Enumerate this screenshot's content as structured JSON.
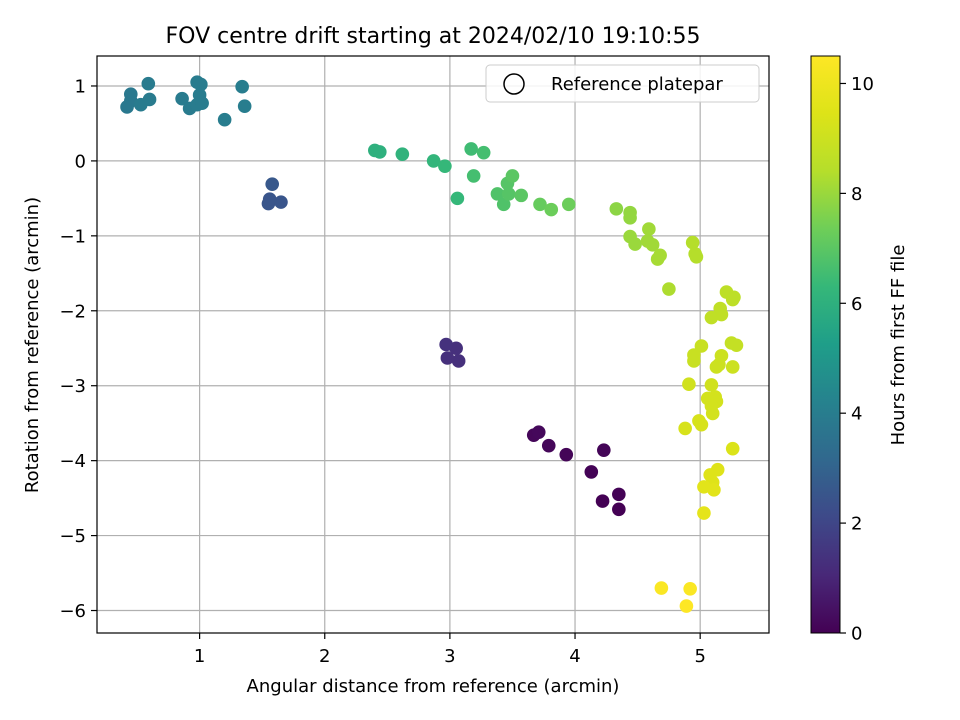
{
  "chart_data": {
    "type": "scatter",
    "title": "FOV centre drift starting at 2024/02/10 19:10:55",
    "xlabel": "Angular distance from reference (arcmin)",
    "ylabel": "Rotation from reference (arcmin)",
    "xlim": [
      0.18,
      5.55
    ],
    "ylim": [
      -6.3,
      1.4
    ],
    "x_ticks": [
      1,
      2,
      3,
      4,
      5
    ],
    "y_ticks": [
      1,
      0,
      -1,
      -2,
      -3,
      -4,
      -5,
      -6
    ],
    "grid": true,
    "legend": {
      "placement": "top-right",
      "entries": [
        "Reference platepar"
      ]
    },
    "colorbar": {
      "label": "Hours from first FF file",
      "range": [
        0,
        10.5
      ],
      "ticks": [
        0,
        2,
        4,
        6,
        8,
        10
      ],
      "colormap": "viridis"
    },
    "point_color_variable": "hours",
    "series": [
      {
        "points": [
          {
            "x": 4.35,
            "y": -4.65,
            "c": 0.0
          },
          {
            "x": 4.22,
            "y": -4.54,
            "c": 0.0
          },
          {
            "x": 4.35,
            "y": -4.45,
            "c": 0.05
          },
          {
            "x": 4.13,
            "y": -4.15,
            "c": 0.05
          },
          {
            "x": 4.23,
            "y": -3.86,
            "c": 0.1
          },
          {
            "x": 3.93,
            "y": -3.92,
            "c": 0.1
          },
          {
            "x": 3.79,
            "y": -3.8,
            "c": 0.15
          },
          {
            "x": 3.67,
            "y": -3.66,
            "c": 0.15
          },
          {
            "x": 3.71,
            "y": -3.62,
            "c": 0.2
          },
          {
            "x": 3.07,
            "y": -2.67,
            "c": 1.3
          },
          {
            "x": 2.98,
            "y": -2.63,
            "c": 1.3
          },
          {
            "x": 3.05,
            "y": -2.5,
            "c": 1.3
          },
          {
            "x": 2.97,
            "y": -2.45,
            "c": 1.35
          },
          {
            "x": 1.55,
            "y": -0.57,
            "c": 2.5
          },
          {
            "x": 1.65,
            "y": -0.55,
            "c": 2.5
          },
          {
            "x": 1.56,
            "y": -0.51,
            "c": 2.5
          },
          {
            "x": 1.58,
            "y": -0.31,
            "c": 2.6
          },
          {
            "x": 0.42,
            "y": 0.72,
            "c": 3.8
          },
          {
            "x": 0.45,
            "y": 0.8,
            "c": 3.8
          },
          {
            "x": 0.45,
            "y": 0.89,
            "c": 3.8
          },
          {
            "x": 0.53,
            "y": 0.75,
            "c": 3.9
          },
          {
            "x": 0.6,
            "y": 0.82,
            "c": 3.9
          },
          {
            "x": 0.59,
            "y": 1.03,
            "c": 3.9
          },
          {
            "x": 0.86,
            "y": 0.83,
            "c": 3.9
          },
          {
            "x": 0.92,
            "y": 0.7,
            "c": 3.9
          },
          {
            "x": 0.98,
            "y": 0.75,
            "c": 3.95
          },
          {
            "x": 1.0,
            "y": 0.88,
            "c": 3.95
          },
          {
            "x": 1.02,
            "y": 0.77,
            "c": 3.95
          },
          {
            "x": 0.98,
            "y": 1.05,
            "c": 3.95
          },
          {
            "x": 1.01,
            "y": 1.02,
            "c": 3.95
          },
          {
            "x": 1.2,
            "y": 0.55,
            "c": 4.0
          },
          {
            "x": 1.34,
            "y": 0.99,
            "c": 4.0
          },
          {
            "x": 1.36,
            "y": 0.73,
            "c": 4.0
          },
          {
            "x": 2.4,
            "y": 0.14,
            "c": 6.0
          },
          {
            "x": 2.44,
            "y": 0.12,
            "c": 6.0
          },
          {
            "x": 2.62,
            "y": 0.09,
            "c": 6.1
          },
          {
            "x": 2.87,
            "y": 0.0,
            "c": 6.2
          },
          {
            "x": 2.96,
            "y": -0.07,
            "c": 6.3
          },
          {
            "x": 3.06,
            "y": -0.5,
            "c": 6.3
          },
          {
            "x": 3.17,
            "y": 0.16,
            "c": 6.5
          },
          {
            "x": 3.27,
            "y": 0.11,
            "c": 6.6
          },
          {
            "x": 3.19,
            "y": -0.2,
            "c": 6.6
          },
          {
            "x": 3.38,
            "y": -0.44,
            "c": 6.8
          },
          {
            "x": 3.43,
            "y": -0.58,
            "c": 6.8
          },
          {
            "x": 3.47,
            "y": -0.44,
            "c": 6.9
          },
          {
            "x": 3.46,
            "y": -0.3,
            "c": 6.9
          },
          {
            "x": 3.5,
            "y": -0.2,
            "c": 7.0
          },
          {
            "x": 3.57,
            "y": -0.46,
            "c": 7.0
          },
          {
            "x": 3.72,
            "y": -0.58,
            "c": 7.2
          },
          {
            "x": 3.81,
            "y": -0.65,
            "c": 7.3
          },
          {
            "x": 3.95,
            "y": -0.58,
            "c": 7.3
          },
          {
            "x": 4.33,
            "y": -0.64,
            "c": 7.8
          },
          {
            "x": 4.44,
            "y": -0.69,
            "c": 7.9
          },
          {
            "x": 4.44,
            "y": -0.76,
            "c": 7.9
          },
          {
            "x": 4.44,
            "y": -1.01,
            "c": 8.0
          },
          {
            "x": 4.48,
            "y": -1.11,
            "c": 8.0
          },
          {
            "x": 4.59,
            "y": -0.91,
            "c": 8.1
          },
          {
            "x": 4.58,
            "y": -1.07,
            "c": 8.1
          },
          {
            "x": 4.62,
            "y": -1.12,
            "c": 8.1
          },
          {
            "x": 4.68,
            "y": -1.26,
            "c": 8.2
          },
          {
            "x": 4.66,
            "y": -1.31,
            "c": 8.2
          },
          {
            "x": 4.75,
            "y": -1.71,
            "c": 8.3
          },
          {
            "x": 4.94,
            "y": -1.09,
            "c": 8.4
          },
          {
            "x": 4.96,
            "y": -1.24,
            "c": 8.4
          },
          {
            "x": 4.97,
            "y": -1.28,
            "c": 8.4
          },
          {
            "x": 5.21,
            "y": -1.75,
            "c": 8.6
          },
          {
            "x": 5.27,
            "y": -1.82,
            "c": 8.6
          },
          {
            "x": 5.26,
            "y": -1.85,
            "c": 8.6
          },
          {
            "x": 5.16,
            "y": -1.97,
            "c": 8.7
          },
          {
            "x": 5.17,
            "y": -2.05,
            "c": 8.7
          },
          {
            "x": 5.09,
            "y": -2.09,
            "c": 8.7
          },
          {
            "x": 5.25,
            "y": -2.43,
            "c": 8.8
          },
          {
            "x": 5.29,
            "y": -2.46,
            "c": 8.8
          },
          {
            "x": 5.01,
            "y": -2.47,
            "c": 8.9
          },
          {
            "x": 4.95,
            "y": -2.59,
            "c": 8.9
          },
          {
            "x": 4.95,
            "y": -2.67,
            "c": 8.9
          },
          {
            "x": 5.17,
            "y": -2.6,
            "c": 9.0
          },
          {
            "x": 5.13,
            "y": -2.75,
            "c": 9.0
          },
          {
            "x": 5.15,
            "y": -2.72,
            "c": 9.0
          },
          {
            "x": 5.26,
            "y": -2.75,
            "c": 9.0
          },
          {
            "x": 4.91,
            "y": -2.98,
            "c": 9.1
          },
          {
            "x": 5.09,
            "y": -2.99,
            "c": 9.1
          },
          {
            "x": 5.06,
            "y": -3.17,
            "c": 9.2
          },
          {
            "x": 5.12,
            "y": -3.15,
            "c": 9.2
          },
          {
            "x": 5.13,
            "y": -3.21,
            "c": 9.2
          },
          {
            "x": 5.09,
            "y": -3.27,
            "c": 9.2
          },
          {
            "x": 5.1,
            "y": -3.37,
            "c": 9.2
          },
          {
            "x": 4.99,
            "y": -3.47,
            "c": 9.3
          },
          {
            "x": 5.01,
            "y": -3.52,
            "c": 9.3
          },
          {
            "x": 4.88,
            "y": -3.57,
            "c": 9.3
          },
          {
            "x": 5.26,
            "y": -3.84,
            "c": 9.4
          },
          {
            "x": 5.14,
            "y": -4.12,
            "c": 9.5
          },
          {
            "x": 5.08,
            "y": -4.19,
            "c": 9.5
          },
          {
            "x": 5.1,
            "y": -4.29,
            "c": 9.5
          },
          {
            "x": 5.03,
            "y": -4.35,
            "c": 9.6
          },
          {
            "x": 5.11,
            "y": -4.39,
            "c": 9.6
          },
          {
            "x": 5.03,
            "y": -4.7,
            "c": 9.7
          },
          {
            "x": 4.69,
            "y": -5.7,
            "c": 10.4
          },
          {
            "x": 4.92,
            "y": -5.71,
            "c": 10.4
          },
          {
            "x": 4.89,
            "y": -5.94,
            "c": 10.5
          }
        ]
      }
    ]
  }
}
